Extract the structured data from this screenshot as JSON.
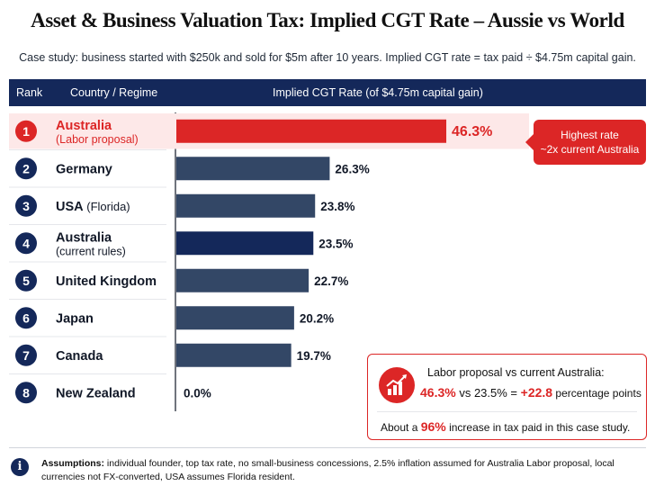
{
  "title": "Asset & Business Valuation Tax: Implied CGT Rate – Aussie vs World",
  "subtitle": "Case study: business started with $250k and sold for $5m after 10 years. Implied CGT rate = tax paid ÷ $4.75m capital gain.",
  "header": {
    "rank": "Rank",
    "country": "Country / Regime",
    "rate": "Implied CGT Rate (of $4.75m capital gain)"
  },
  "colors": {
    "highlight": "#dc2626",
    "dark_navy": "#14285a",
    "slate": "#334766"
  },
  "chart_data": {
    "type": "bar",
    "orientation": "horizontal",
    "unit": "%",
    "xlim": [
      0,
      50
    ],
    "rows": [
      {
        "rank": "1",
        "name": "Australia",
        "sub": "(Labor proposal)",
        "value": 46.3,
        "label": "46.3%",
        "style": "highlight"
      },
      {
        "rank": "2",
        "name": "Germany",
        "sub": "",
        "value": 26.3,
        "label": "26.3%",
        "style": "slate"
      },
      {
        "rank": "3",
        "name": "USA",
        "name_suffix": " (Florida)",
        "sub": "",
        "value": 23.8,
        "label": "23.8%",
        "style": "slate"
      },
      {
        "rank": "4",
        "name": "Australia",
        "sub": "(current rules)",
        "value": 23.5,
        "label": "23.5%",
        "style": "navy"
      },
      {
        "rank": "5",
        "name": "United Kingdom",
        "sub": "",
        "value": 22.7,
        "label": "22.7%",
        "style": "slate"
      },
      {
        "rank": "6",
        "name": "Japan",
        "sub": "",
        "value": 20.2,
        "label": "20.2%",
        "style": "slate"
      },
      {
        "rank": "7",
        "name": "Canada",
        "sub": "",
        "value": 19.7,
        "label": "19.7%",
        "style": "slate"
      },
      {
        "rank": "8",
        "name": "New Zealand",
        "sub": "",
        "value": 0.0,
        "label": "0.0%",
        "style": "slate"
      }
    ]
  },
  "callout": {
    "line1": "Highest rate",
    "line2": "~2x current Australia"
  },
  "comparison": {
    "heading": "Labor proposal vs current Australia:",
    "value_a": "46.3%",
    "vs": " vs ",
    "value_b": "23.5%",
    "equals": " = ",
    "delta": "+22.8",
    "delta_unit": " percentage points",
    "about_prefix": "About a ",
    "about_pct": "96%",
    "about_suffix": " increase in tax paid in this case study."
  },
  "assumptions": {
    "label": "Assumptions:",
    "text": " individual founder, top tax rate, no small-business concessions, 2.5% inflation assumed for Australia Labor proposal, local currencies not FX-converted, USA assumes Florida resident."
  }
}
